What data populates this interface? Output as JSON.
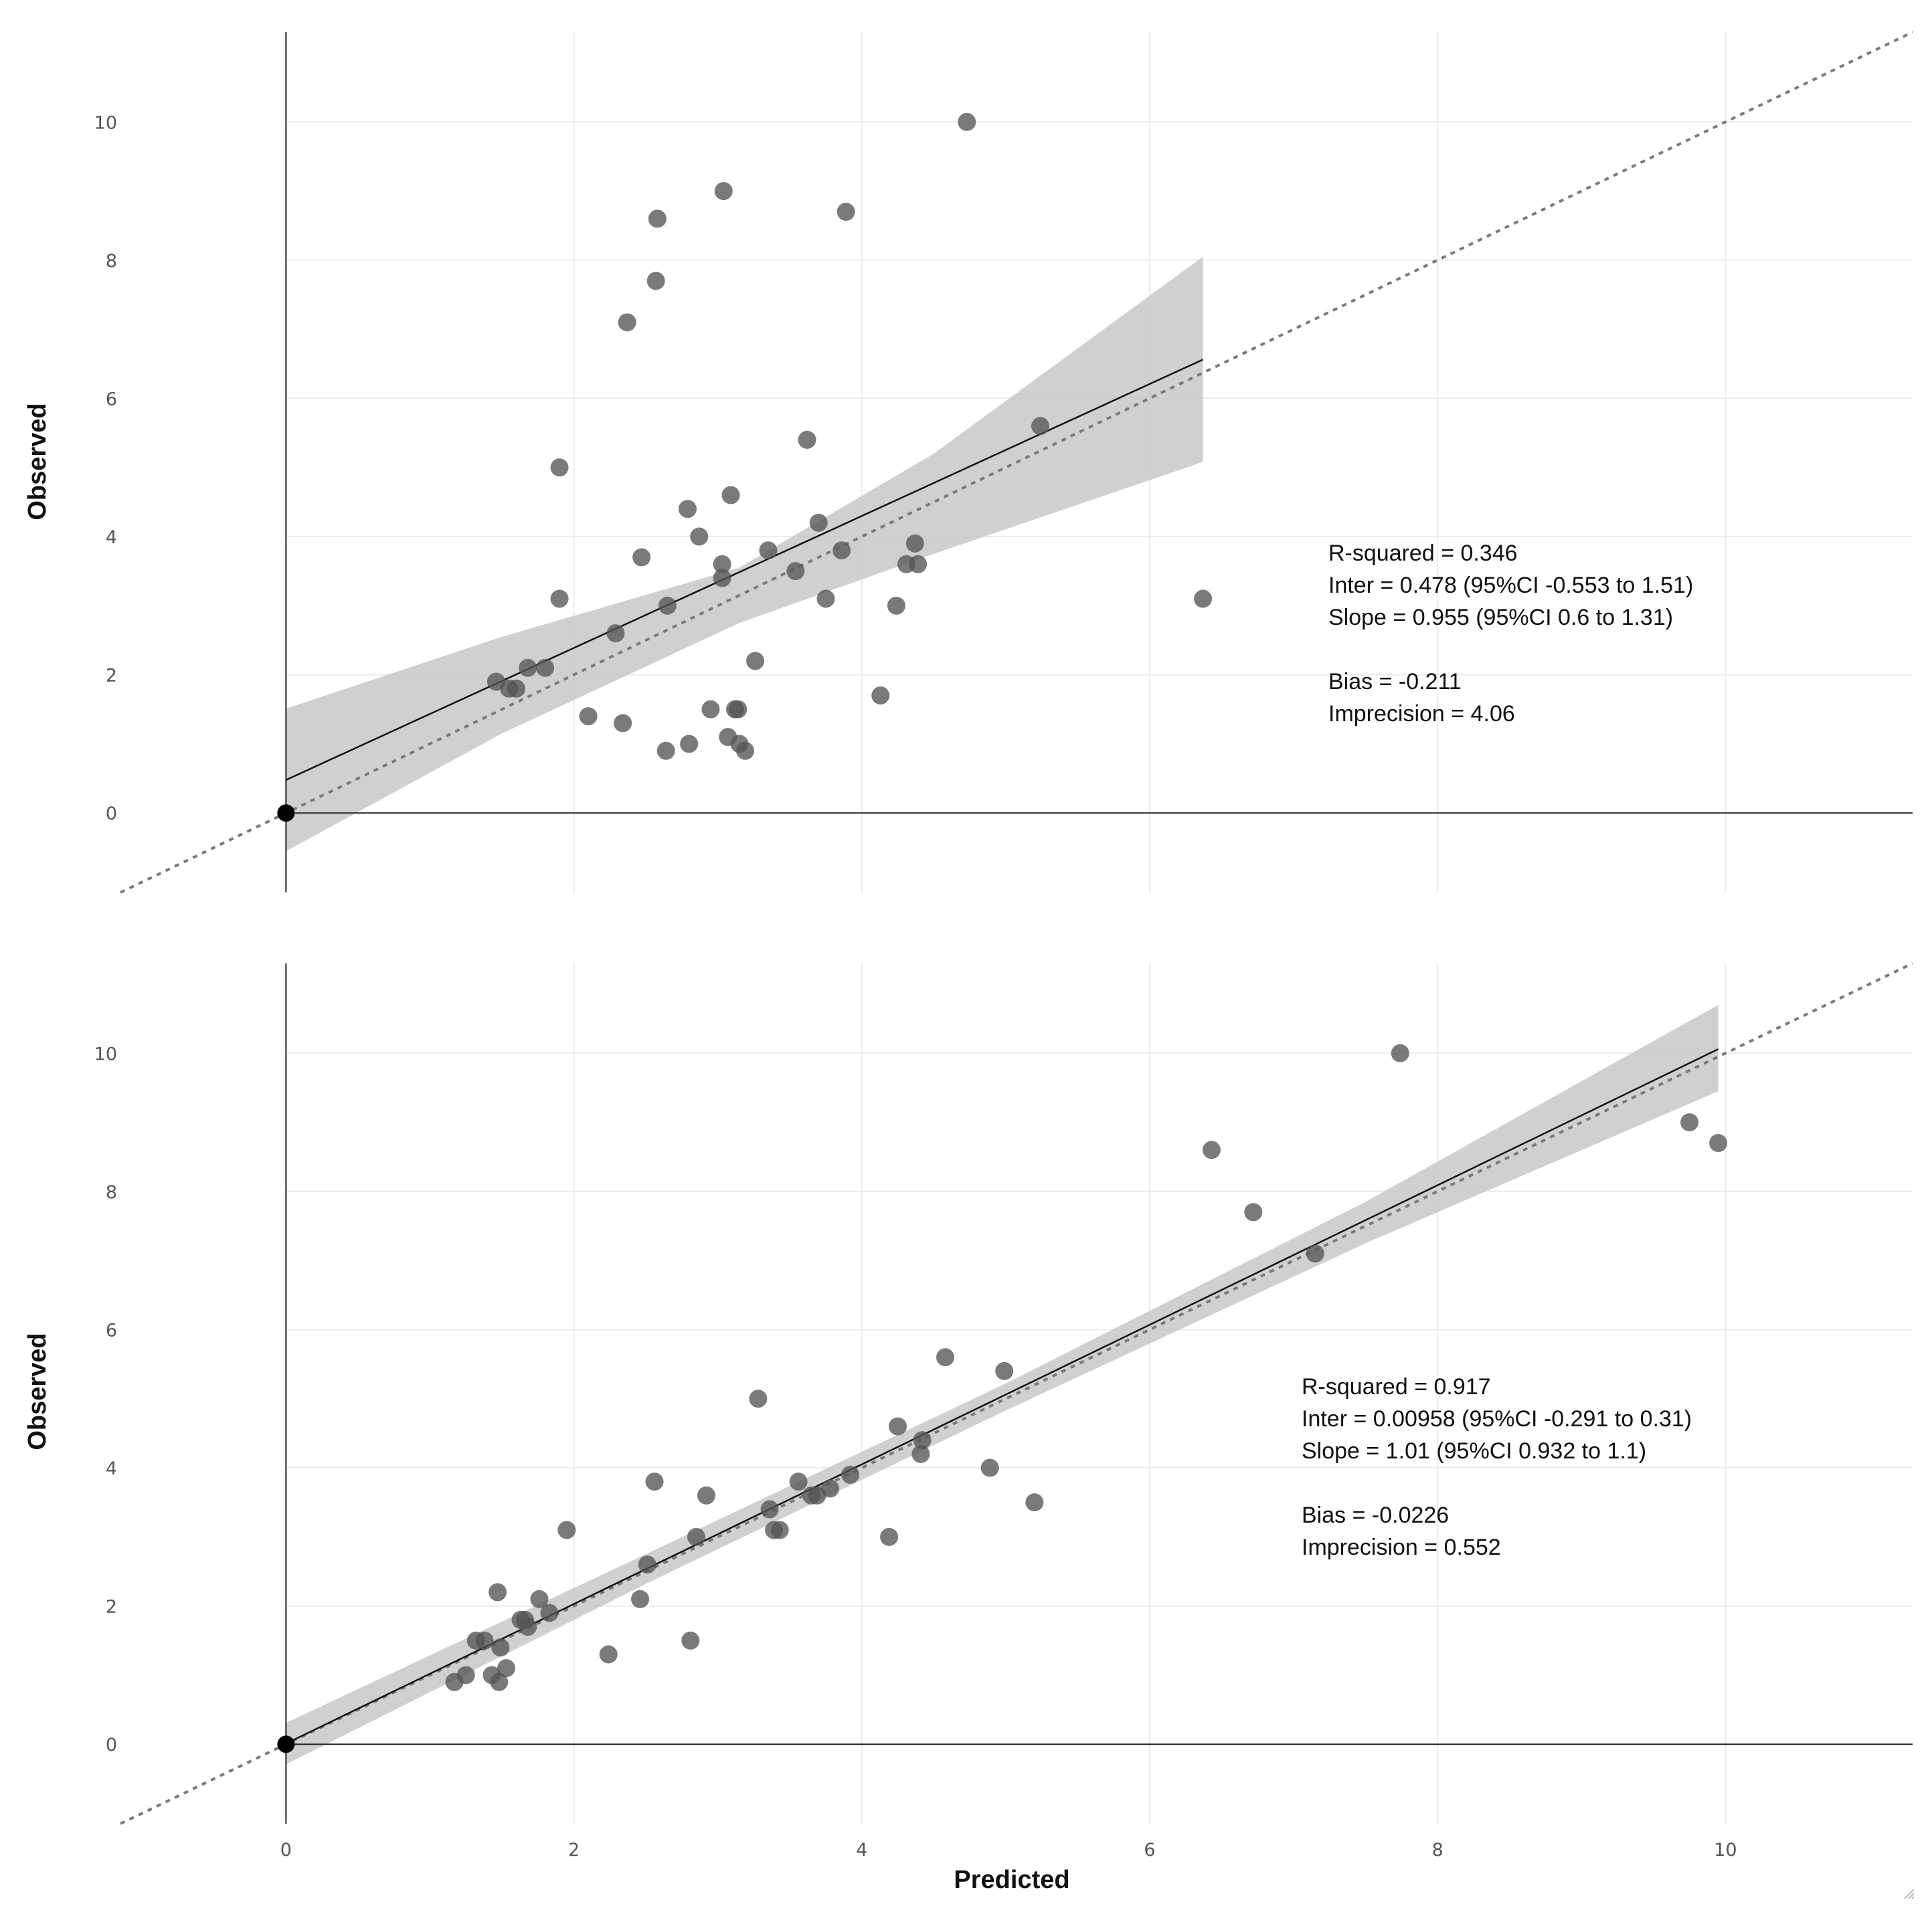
{
  "chart_data": [
    {
      "type": "scatter",
      "name": "top-panel",
      "xlabel": "",
      "ylabel": "Observed",
      "xlim": [
        -1.15,
        11.3
      ],
      "ylim": [
        -1.15,
        11.3
      ],
      "x_ticks": [
        0,
        2,
        4,
        6,
        8,
        10
      ],
      "y_ticks": [
        0,
        2,
        4,
        6,
        8,
        10
      ],
      "x_tick_labels": [
        "0",
        "2",
        "4",
        "6",
        "8",
        "10"
      ],
      "y_tick_labels": [
        "0",
        "2",
        "4",
        "6",
        "8",
        "10"
      ],
      "show_x_tick_labels": false,
      "grid": true,
      "identity_line": true,
      "regression": {
        "intercept": 0.478,
        "slope": 0.955,
        "x_range": [
          0,
          6.37
        ],
        "ci_band": [
          {
            "x": 0,
            "lower": -0.553,
            "upper": 1.51
          },
          {
            "x": 1.5,
            "lower": 1.15,
            "upper": 2.55
          },
          {
            "x": 3.15,
            "lower": 2.75,
            "upper": 3.55
          },
          {
            "x": 4.5,
            "lower": 3.75,
            "upper": 5.2
          },
          {
            "x": 6.37,
            "lower": 5.08,
            "upper": 8.05
          }
        ]
      },
      "points": [
        {
          "x": 4.73,
          "y": 10
        },
        {
          "x": 3.04,
          "y": 9
        },
        {
          "x": 3.89,
          "y": 8.7
        },
        {
          "x": 2.58,
          "y": 8.6
        },
        {
          "x": 2.57,
          "y": 7.7
        },
        {
          "x": 2.37,
          "y": 7.1
        },
        {
          "x": 5.24,
          "y": 5.6
        },
        {
          "x": 3.62,
          "y": 5.4
        },
        {
          "x": 1.9,
          "y": 5
        },
        {
          "x": 3.09,
          "y": 4.6
        },
        {
          "x": 2.79,
          "y": 4.4
        },
        {
          "x": 3.7,
          "y": 4.2
        },
        {
          "x": 2.87,
          "y": 4
        },
        {
          "x": 4.37,
          "y": 3.9
        },
        {
          "x": 3.35,
          "y": 3.8
        },
        {
          "x": 3.86,
          "y": 3.8
        },
        {
          "x": 2.47,
          "y": 3.7
        },
        {
          "x": 3.03,
          "y": 3.6
        },
        {
          "x": 4.31,
          "y": 3.6
        },
        {
          "x": 4.39,
          "y": 3.6
        },
        {
          "x": 3.54,
          "y": 3.5
        },
        {
          "x": 3.03,
          "y": 3.4
        },
        {
          "x": 1.9,
          "y": 3.1
        },
        {
          "x": 3.75,
          "y": 3.1
        },
        {
          "x": 6.37,
          "y": 3.1
        },
        {
          "x": 2.65,
          "y": 3
        },
        {
          "x": 4.24,
          "y": 3
        },
        {
          "x": 2.29,
          "y": 2.6
        },
        {
          "x": 3.26,
          "y": 2.2
        },
        {
          "x": 1.68,
          "y": 2.1
        },
        {
          "x": 1.8,
          "y": 2.1
        },
        {
          "x": 1.46,
          "y": 1.9
        },
        {
          "x": 1.55,
          "y": 1.8
        },
        {
          "x": 1.6,
          "y": 1.8
        },
        {
          "x": 4.13,
          "y": 1.7
        },
        {
          "x": 2.95,
          "y": 1.5
        },
        {
          "x": 3.12,
          "y": 1.5
        },
        {
          "x": 3.14,
          "y": 1.5
        },
        {
          "x": 2.1,
          "y": 1.4
        },
        {
          "x": 2.34,
          "y": 1.3
        },
        {
          "x": 3.07,
          "y": 1.1
        },
        {
          "x": 2.8,
          "y": 1
        },
        {
          "x": 3.15,
          "y": 1
        },
        {
          "x": 2.64,
          "y": 0.9
        },
        {
          "x": 3.19,
          "y": 0.9
        }
      ],
      "origin_point": {
        "x": 0,
        "y": 0
      },
      "stats": {
        "r_squared": "R-squared = 0.346",
        "intercept": "Inter = 0.478 (95%CI -0.553 to 1.51)",
        "slope": "Slope = 0.955 (95%CI 0.6 to 1.31)",
        "bias": "Bias = -0.211",
        "imprecision": "Imprecision  = 4.06"
      }
    },
    {
      "type": "scatter",
      "name": "bottom-panel",
      "xlabel": "Predicted",
      "ylabel": "Observed",
      "xlim": [
        -1.15,
        11.3
      ],
      "ylim": [
        -1.15,
        11.3
      ],
      "x_ticks": [
        0,
        2,
        4,
        6,
        8,
        10
      ],
      "y_ticks": [
        0,
        2,
        4,
        6,
        8,
        10
      ],
      "x_tick_labels": [
        "0",
        "2",
        "4",
        "6",
        "8",
        "10"
      ],
      "y_tick_labels": [
        "0",
        "2",
        "4",
        "6",
        "8",
        "10"
      ],
      "show_x_tick_labels": true,
      "grid": true,
      "identity_line": true,
      "regression": {
        "intercept": 0.00958,
        "slope": 1.01,
        "x_range": [
          0,
          9.95
        ],
        "ci_band": [
          {
            "x": 0,
            "lower": -0.291,
            "upper": 0.31
          },
          {
            "x": 2.5,
            "lower": 2.32,
            "upper": 2.75
          },
          {
            "x": 5,
            "lower": 4.83,
            "upper": 5.22
          },
          {
            "x": 7.5,
            "lower": 7.25,
            "upper": 7.85
          },
          {
            "x": 9.95,
            "lower": 9.45,
            "upper": 10.7
          }
        ]
      },
      "points": [
        {
          "x": 7.74,
          "y": 10
        },
        {
          "x": 9.75,
          "y": 9
        },
        {
          "x": 9.95,
          "y": 8.7
        },
        {
          "x": 6.43,
          "y": 8.6
        },
        {
          "x": 6.72,
          "y": 7.7
        },
        {
          "x": 7.15,
          "y": 7.1
        },
        {
          "x": 4.58,
          "y": 5.6
        },
        {
          "x": 4.99,
          "y": 5.4
        },
        {
          "x": 3.28,
          "y": 5
        },
        {
          "x": 4.25,
          "y": 4.6
        },
        {
          "x": 4.42,
          "y": 4.4
        },
        {
          "x": 4.41,
          "y": 4.2
        },
        {
          "x": 4.89,
          "y": 4
        },
        {
          "x": 3.92,
          "y": 3.9
        },
        {
          "x": 2.56,
          "y": 3.8
        },
        {
          "x": 3.56,
          "y": 3.8
        },
        {
          "x": 3.78,
          "y": 3.7
        },
        {
          "x": 2.92,
          "y": 3.6
        },
        {
          "x": 3.65,
          "y": 3.6
        },
        {
          "x": 3.69,
          "y": 3.6
        },
        {
          "x": 5.2,
          "y": 3.5
        },
        {
          "x": 3.36,
          "y": 3.4
        },
        {
          "x": 1.95,
          "y": 3.1
        },
        {
          "x": 3.39,
          "y": 3.1
        },
        {
          "x": 3.43,
          "y": 3.1
        },
        {
          "x": 2.85,
          "y": 3
        },
        {
          "x": 4.19,
          "y": 3
        },
        {
          "x": 2.51,
          "y": 2.6
        },
        {
          "x": 1.47,
          "y": 2.2
        },
        {
          "x": 1.76,
          "y": 2.1
        },
        {
          "x": 2.46,
          "y": 2.1
        },
        {
          "x": 1.83,
          "y": 1.9
        },
        {
          "x": 1.63,
          "y": 1.8
        },
        {
          "x": 1.66,
          "y": 1.8
        },
        {
          "x": 1.68,
          "y": 1.7
        },
        {
          "x": 1.32,
          "y": 1.5
        },
        {
          "x": 1.38,
          "y": 1.5
        },
        {
          "x": 2.81,
          "y": 1.5
        },
        {
          "x": 1.49,
          "y": 1.4
        },
        {
          "x": 2.24,
          "y": 1.3
        },
        {
          "x": 1.53,
          "y": 1.1
        },
        {
          "x": 1.25,
          "y": 1
        },
        {
          "x": 1.43,
          "y": 1
        },
        {
          "x": 1.17,
          "y": 0.9
        },
        {
          "x": 1.48,
          "y": 0.9
        }
      ],
      "origin_point": {
        "x": 0,
        "y": 0
      },
      "stats": {
        "r_squared": "R-squared = 0.917",
        "intercept": "Inter = 0.00958 (95%CI -0.291 to 0.31)",
        "slope": "Slope = 1.01 (95%CI 0.932 to 1.1)",
        "bias": "Bias = -0.0226",
        "imprecision": "Imprecision  = 0.552"
      }
    }
  ]
}
